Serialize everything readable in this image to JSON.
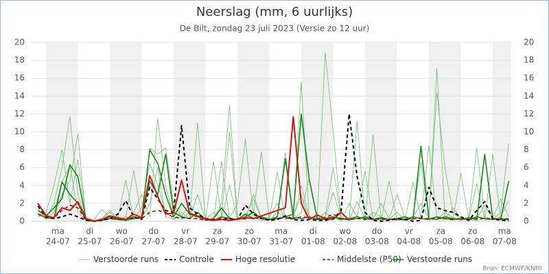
{
  "chart_data": {
    "type": "line",
    "title": "Neerslag (mm, 6 uurlijks)",
    "subtitle": "De Bilt, zondag 23 juli 2023 (Versie zo 12 uur)",
    "source": "Bron: ECMWF/KNMI",
    "categories": [
      null,
      null,
      null,
      "24-07",
      null,
      null,
      null,
      "25-07",
      null,
      null,
      null,
      "26-07",
      null,
      null,
      null,
      "27-07",
      null,
      null,
      null,
      "28-07",
      null,
      null,
      null,
      "29-07",
      null,
      null,
      null,
      "30-07",
      null,
      null,
      null,
      "31-07",
      null,
      null,
      null,
      "01-08",
      null,
      null,
      null,
      "02-08",
      null,
      null,
      null,
      "03-08",
      null,
      null,
      null,
      "04-08",
      null,
      null,
      null,
      "05-08",
      null,
      null,
      null,
      "06-08",
      null,
      null,
      null,
      "07-08"
    ],
    "weekdays": [
      null,
      null,
      null,
      "ma",
      null,
      null,
      null,
      "di",
      null,
      null,
      null,
      "wo",
      null,
      null,
      null,
      "do",
      null,
      null,
      null,
      "vr",
      null,
      null,
      null,
      "za",
      null,
      null,
      null,
      "zo",
      null,
      null,
      null,
      "ma",
      null,
      null,
      null,
      "di",
      null,
      null,
      null,
      "wo",
      null,
      null,
      null,
      "do",
      null,
      null,
      null,
      "vr",
      null,
      null,
      null,
      "za",
      null,
      null,
      null,
      "zo",
      null,
      null,
      null,
      "ma"
    ],
    "ylim": [
      0,
      20
    ],
    "yticks": [
      0,
      2,
      4,
      6,
      8,
      10,
      12,
      14,
      16,
      18,
      20
    ],
    "y2lim": [
      0,
      20
    ],
    "y2ticks": [
      0,
      2,
      4,
      6,
      8,
      10,
      12,
      14,
      16,
      18,
      20
    ],
    "grid": true,
    "shade_alternate_days": true,
    "legend": "bottom",
    "series": [
      {
        "name": "Verstoorde runs",
        "color": "#6cbf6c",
        "width": 0.8,
        "dash": false,
        "runs": [
          [
            1,
            0.3,
            2,
            6,
            11.7,
            3,
            0.2,
            0,
            0.1,
            0.5,
            0.2,
            0.1,
            1,
            3,
            0.5,
            11.5,
            4,
            0.5,
            0.2,
            1,
            0.3,
            0.1,
            0.2,
            2,
            13,
            0.5,
            0.2,
            3,
            0.3,
            0.1,
            1,
            0.5,
            0.3,
            4,
            0.5,
            0.2,
            1,
            0.3,
            0.1,
            2,
            0.5,
            0.1,
            9.7,
            0.3,
            0.2,
            1,
            0.1,
            0.5,
            2,
            0.3,
            0.2,
            1,
            0.4,
            0.1,
            0.3,
            8.2,
            0.5,
            0.2,
            1,
            8.7
          ],
          [
            0.5,
            1,
            4,
            8,
            2,
            6.9,
            0.5,
            0.1,
            0.3,
            1,
            0.2,
            0.4,
            5.7,
            0.3,
            2,
            6,
            0.5,
            0.2,
            1,
            0.3,
            11,
            0.2,
            0.1,
            6.7,
            0.3,
            2,
            9.2,
            0.4,
            0.1,
            0.3,
            5.5,
            0.2,
            0.5,
            15.6,
            0.3,
            0.2,
            0.5,
            6,
            0.3,
            0.1,
            11.2,
            0.2,
            0.3,
            0.1,
            4.5,
            0.2,
            0.1,
            0.5,
            6.6,
            0.3,
            17.1,
            0.5,
            0.1,
            5.4,
            0.2,
            0.1,
            0.3,
            7.5,
            0.2,
            0.1
          ],
          [
            2,
            0.8,
            0.3,
            3,
            4.5,
            9.8,
            0.1,
            0,
            0.3,
            1.2,
            0.3,
            4.6,
            0.2,
            0.5,
            8.2,
            7.5,
            8.2,
            2,
            0.5,
            0.3,
            3,
            0.2,
            6.7,
            0.5,
            10,
            0.3,
            0.2,
            1,
            7.8,
            0.2,
            0.3,
            7.7,
            0.5,
            3,
            0.2,
            0.5,
            18.9,
            10,
            0.3,
            0.1,
            0.5,
            5.6,
            0.2,
            2,
            0.3,
            0.1,
            0.2,
            4.4,
            0.3,
            0.2,
            14.4,
            6,
            1,
            0.2,
            0.3,
            4.2,
            0.1,
            0.3,
            2.5,
            0.5
          ],
          [
            1.5,
            0.2,
            1,
            4.4,
            6.2,
            1,
            0.1,
            0.2,
            1.3,
            0.5,
            0.2,
            0.5,
            0.3,
            1.5,
            6.5,
            4,
            1,
            0.3,
            0.5,
            2,
            0.5,
            0.2,
            1,
            0.3,
            4,
            0.2,
            0.5,
            2.5,
            0.3,
            0.5,
            2,
            0.3,
            0.2,
            1,
            4.8,
            0.3,
            0.5,
            3.2,
            0.4,
            0.2,
            2.2,
            0.3,
            1,
            0.5,
            0.2,
            3,
            0.4,
            0.2,
            0.5,
            8.5,
            0.3,
            0.2,
            1.5,
            0.4,
            0.2,
            0.3,
            1.8,
            0.2,
            0.5,
            2.3
          ]
        ]
      },
      {
        "name": "Controle",
        "color": "#000000",
        "width": 2,
        "dash": true,
        "values": [
          1.7,
          0.5,
          0.3,
          0.5,
          0.8,
          0.5,
          0.1,
          0,
          0.1,
          0.3,
          0.8,
          2.3,
          0.5,
          0.2,
          3.8,
          2.5,
          1.2,
          1,
          10.7,
          1.5,
          0.8,
          0.3,
          0.1,
          0.2,
          0.3,
          0.2,
          1.8,
          0.8,
          0.3,
          0.1,
          0.2,
          0.6,
          0.2,
          0.1,
          0.2,
          0.1,
          0.1,
          0.3,
          1.2,
          12,
          5,
          1,
          0.1,
          0,
          0.1,
          0.3,
          0.2,
          0,
          0.1,
          3.8,
          1.5,
          1.2,
          1,
          0.5,
          0.1,
          1.2,
          2.2,
          0.3,
          0.1,
          0.1
        ]
      },
      {
        "name": "Hoge resolutie",
        "color": "#dd1111",
        "width": 2,
        "dash": false,
        "values": [
          2,
          0.6,
          0.4,
          1.5,
          1.2,
          2.2,
          0.3,
          0,
          0.2,
          0.6,
          0.4,
          0.2,
          0.8,
          0.4,
          5.1,
          2.8,
          0.8,
          0.9,
          4.6,
          0.9,
          0.6,
          0.2,
          0.1,
          0.2,
          0.1,
          0.2,
          0.4,
          0.3,
          0.6,
          0.9,
          1.2,
          1.5,
          11.7,
          2,
          0.2,
          0.7,
          0.3,
          0.2,
          1,
          0.1,
          null,
          null,
          null,
          null,
          null,
          null,
          null,
          null,
          null,
          null,
          null,
          null,
          null,
          null,
          null,
          null,
          null,
          null,
          null,
          null
        ]
      },
      {
        "name": "Middelste (P50)",
        "color": "#aa0000",
        "width": 1.5,
        "dash": true,
        "values": [
          0.8,
          0.4,
          0.4,
          1.2,
          1.8,
          1.5,
          0.1,
          0,
          0.1,
          0.3,
          0.2,
          0.2,
          0.4,
          0.3,
          1,
          1.2,
          1,
          0.4,
          0.4,
          0.3,
          0.3,
          0.1,
          0.2,
          0.3,
          0.3,
          0.2,
          0.3,
          0.4,
          0.3,
          0.2,
          0.3,
          0.4,
          0.3,
          0.5,
          0.4,
          0.3,
          0.4,
          0.8,
          0.3,
          0.2,
          0.3,
          0.2,
          0.3,
          0.2,
          0.2,
          0.2,
          0.2,
          0.3,
          0.3,
          0.3,
          0.4,
          0.3,
          0.2,
          0.3,
          0.2,
          0.3,
          0.3,
          0.3,
          0.2,
          0.3
        ]
      },
      {
        "name": "Verstoorde runs",
        "color": "#138a13",
        "width": 1.6,
        "dash": false,
        "runs": [
          [
            1.2,
            0.6,
            1.5,
            2.5,
            6.3,
            5,
            0.2,
            0,
            0.2,
            0.5,
            0.3,
            0.2,
            0.5,
            0.3,
            8,
            6.5,
            3,
            0.5,
            2,
            0.8,
            0.5,
            0.2,
            0.3,
            1.5,
            0.3,
            0.2,
            0.8,
            0.3,
            0.5,
            0.2,
            0.5,
            7,
            0.4,
            0.3,
            0.5,
            0.2,
            0.3,
            0.5,
            0.2,
            0.3,
            0.5,
            0.3,
            0.2,
            0.4,
            0.2,
            0.3,
            0.5,
            0.2,
            8.4,
            0.3,
            0.2,
            0.5,
            0.3,
            0.2,
            0.4,
            0.2,
            7.5,
            0.3,
            0.2,
            4.5
          ],
          [
            0.8,
            0.4,
            0.3,
            4.4,
            3,
            2,
            0.1,
            0,
            0.1,
            0.3,
            0.2,
            0.1,
            0.3,
            0.5,
            4.5,
            3,
            7.5,
            1,
            0.5,
            0.3,
            1,
            0.2,
            0.1,
            0.5,
            0.3,
            0.2,
            0.5,
            1,
            0.3,
            0.2,
            0.3,
            0.5,
            0.8,
            12,
            4.7,
            0.3,
            0.2,
            0.5,
            0.3,
            0.2,
            0.3,
            0.5,
            0.2,
            0.3,
            0.2,
            0.3,
            0.2,
            0.5,
            0.3,
            0.2,
            0.5,
            0.3,
            0.2,
            0.3,
            0.2,
            0.5,
            0.3,
            0.2,
            0.3,
            0.2
          ]
        ]
      }
    ]
  }
}
